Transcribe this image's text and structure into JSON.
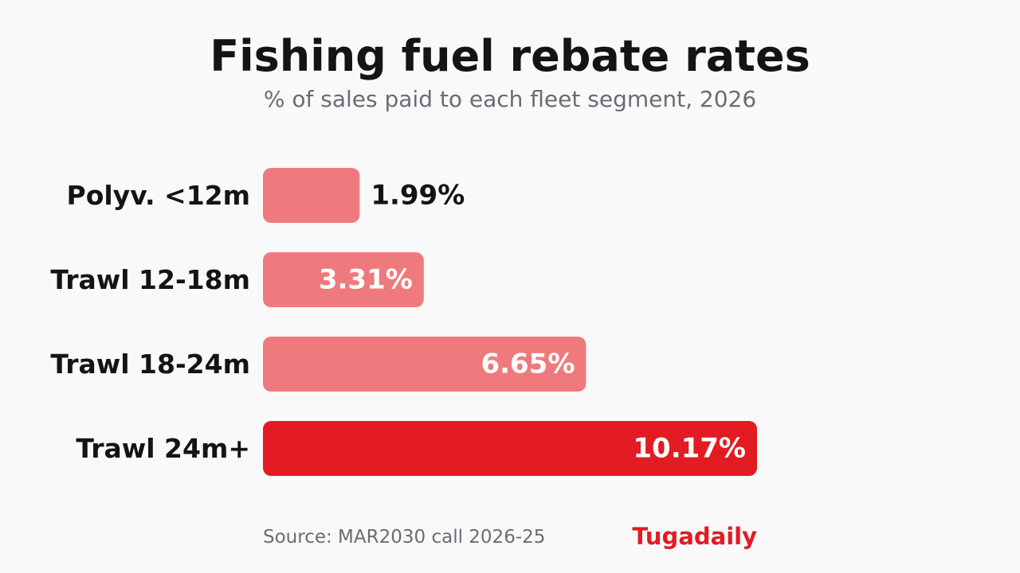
{
  "chart_data": {
    "type": "bar",
    "orientation": "horizontal",
    "title": "Fishing fuel rebate rates",
    "subtitle": "% of sales paid to each fleet segment, 2026",
    "categories": [
      "Polyv. <12m",
      "Trawl 12-18m",
      "Trawl 18-24m",
      "Trawl 24m+"
    ],
    "values": [
      1.99,
      3.31,
      6.65,
      10.17
    ],
    "value_labels": [
      "1.99%",
      "3.31%",
      "6.65%",
      "10.17%"
    ],
    "unit": "%",
    "xlim": [
      0,
      10.17
    ],
    "grid": false,
    "legend": "none",
    "highlight_category": "Trawl 24m+"
  },
  "colors": {
    "bar": "#ef7a7d",
    "highlight": "#e31b23",
    "label_outside": "#141416",
    "label_inside": "#ffffff"
  },
  "footer": {
    "source": "Source: MAR2030 call 2026-25",
    "brand": "Tugadaily"
  }
}
